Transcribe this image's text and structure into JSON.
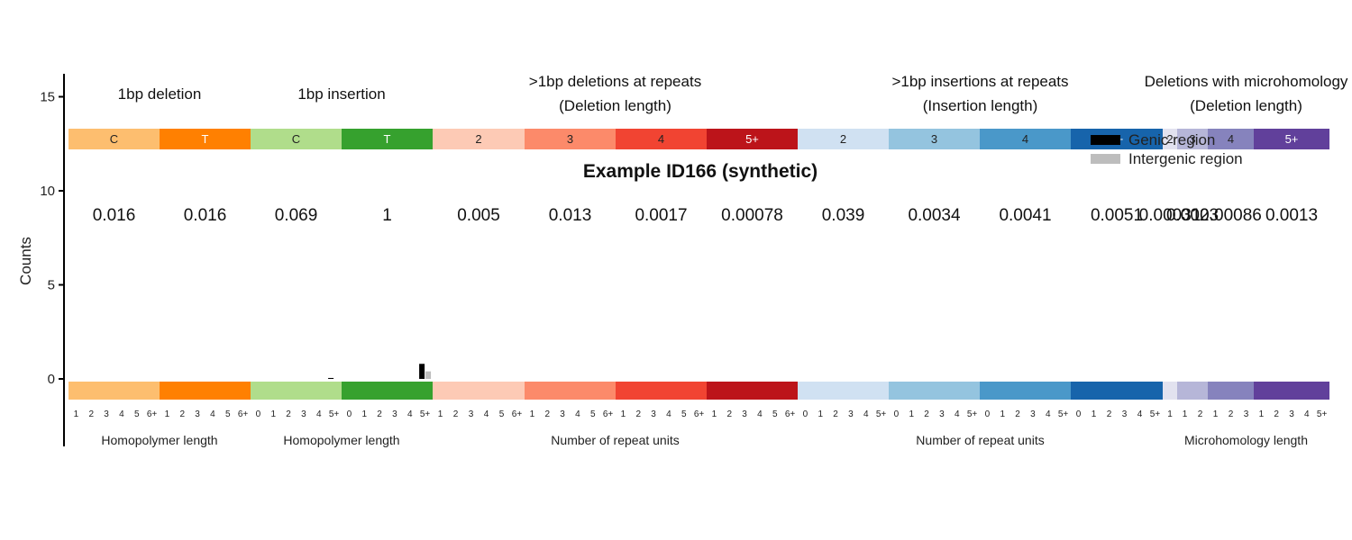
{
  "chart_data": {
    "type": "bar",
    "title": "Example ID166 (synthetic)",
    "ylabel": "Counts",
    "ylim": [
      0,
      16
    ],
    "yticks": [
      0,
      5,
      10,
      15
    ],
    "legend": {
      "placement": "top-right",
      "entries": [
        {
          "name": "Genic region",
          "color": "#000000"
        },
        {
          "name": "Intergenic region",
          "color": "#bdbdbd"
        }
      ]
    },
    "group_labels": [
      {
        "lines": [
          "1bp deletion"
        ],
        "groups": [
          0,
          1
        ]
      },
      {
        "lines": [
          "1bp insertion"
        ],
        "groups": [
          2,
          3
        ]
      },
      {
        "lines": [
          ">1bp deletions at repeats",
          "(Deletion length)"
        ],
        "groups": [
          4,
          5,
          6,
          7
        ]
      },
      {
        "lines": [
          ">1bp insertions at repeats",
          "(Insertion length)"
        ],
        "groups": [
          8,
          9,
          10,
          11
        ]
      },
      {
        "lines": [
          "Deletions with microhomology",
          "(Deletion length)"
        ],
        "groups": [
          12,
          13,
          14,
          15
        ]
      }
    ],
    "bottom_labels": [
      {
        "text": "Homopolymer length",
        "groups": [
          0,
          1
        ]
      },
      {
        "text": "Homopolymer length",
        "groups": [
          2,
          3
        ]
      },
      {
        "text": "Number of repeat units",
        "groups": [
          4,
          5,
          6,
          7
        ]
      },
      {
        "text": "Number of repeat units",
        "groups": [
          8,
          9,
          10,
          11
        ]
      },
      {
        "text": "Microhomology length",
        "groups": [
          12,
          13,
          14,
          15
        ]
      }
    ],
    "groups": [
      {
        "label": "C",
        "color": "#fdbe6f",
        "text_color": "#222222",
        "proportion": "0.016",
        "ticks": [
          "1",
          "2",
          "3",
          "4",
          "5",
          "6+"
        ]
      },
      {
        "label": "T",
        "color": "#ff8001",
        "text_color": "#ffffff",
        "proportion": "0.016",
        "ticks": [
          "1",
          "2",
          "3",
          "4",
          "5",
          "6+"
        ]
      },
      {
        "label": "C",
        "color": "#b0dd8b",
        "text_color": "#222222",
        "proportion": "0.069",
        "ticks": [
          "0",
          "1",
          "2",
          "3",
          "4",
          "5+"
        ]
      },
      {
        "label": "T",
        "color": "#36a12e",
        "text_color": "#ffffff",
        "proportion": "1",
        "ticks": [
          "0",
          "1",
          "2",
          "3",
          "4",
          "5+"
        ]
      },
      {
        "label": "2",
        "color": "#fdcab5",
        "text_color": "#222222",
        "proportion": "0.005",
        "ticks": [
          "1",
          "2",
          "3",
          "4",
          "5",
          "6+"
        ]
      },
      {
        "label": "3",
        "color": "#fc8a6a",
        "text_color": "#222222",
        "proportion": "0.013",
        "ticks": [
          "1",
          "2",
          "3",
          "4",
          "5",
          "6+"
        ]
      },
      {
        "label": "4",
        "color": "#f14432",
        "text_color": "#222222",
        "proportion": "0.0017",
        "ticks": [
          "1",
          "2",
          "3",
          "4",
          "5",
          "6+"
        ]
      },
      {
        "label": "5+",
        "color": "#bc141a",
        "text_color": "#ffffff",
        "proportion": "0.00078",
        "ticks": [
          "1",
          "2",
          "3",
          "4",
          "5",
          "6+"
        ]
      },
      {
        "label": "2",
        "color": "#d0e1f2",
        "text_color": "#222222",
        "proportion": "0.039",
        "ticks": [
          "0",
          "1",
          "2",
          "3",
          "4",
          "5+"
        ]
      },
      {
        "label": "3",
        "color": "#94c4df",
        "text_color": "#222222",
        "proportion": "0.0034",
        "ticks": [
          "0",
          "1",
          "2",
          "3",
          "4",
          "5+"
        ]
      },
      {
        "label": "4",
        "color": "#4a98c9",
        "text_color": "#222222",
        "proportion": "0.0041",
        "ticks": [
          "0",
          "1",
          "2",
          "3",
          "4",
          "5+"
        ]
      },
      {
        "label": "5+",
        "color": "#1764ab",
        "text_color": "#ffffff",
        "proportion": "0.0051",
        "ticks": [
          "0",
          "1",
          "2",
          "3",
          "4",
          "5+"
        ]
      },
      {
        "label": "2",
        "color": "#e2e2ef",
        "text_color": "#222222",
        "proportion": "0.00031",
        "ticks": [
          "1"
        ]
      },
      {
        "label": "3",
        "color": "#b6b6d8",
        "text_color": "#222222",
        "proportion": "0.0023",
        "ticks": [
          "1",
          "2"
        ]
      },
      {
        "label": "4",
        "color": "#8683bd",
        "text_color": "#222222",
        "proportion": "0.00086",
        "ticks": [
          "1",
          "2",
          "3"
        ]
      },
      {
        "label": "5+",
        "color": "#61409b",
        "text_color": "#ffffff",
        "proportion": "0.0013",
        "ticks": [
          "1",
          "2",
          "3",
          "4",
          "5+"
        ]
      }
    ],
    "series": [
      {
        "name": "Genic region",
        "color": "#000000",
        "bars": [
          {
            "group": 2,
            "tick": 5,
            "value": 0.05
          },
          {
            "group": 3,
            "tick": 5,
            "value": 0.8
          }
        ]
      },
      {
        "name": "Intergenic region",
        "color": "#bdbdbd",
        "bars": [
          {
            "group": 3,
            "tick": 5,
            "value": 0.4
          }
        ]
      }
    ]
  }
}
